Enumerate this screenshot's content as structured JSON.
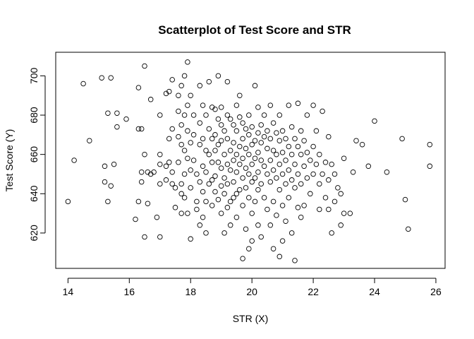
{
  "chart_data": {
    "type": "scatter",
    "title": "Scatterplot of Test Score and STR",
    "xlabel": "STR (X)",
    "ylabel": "Test Score (Y)",
    "xlim": [
      13.6,
      26.3
    ],
    "ylim": [
      602,
      712
    ],
    "xticks": [
      14,
      16,
      18,
      20,
      22,
      24,
      26
    ],
    "yticks": [
      620,
      640,
      660,
      680,
      700
    ],
    "grid": false,
    "marker": "open-circle",
    "points": [
      [
        14.0,
        636
      ],
      [
        14.2,
        657
      ],
      [
        14.5,
        696
      ],
      [
        14.7,
        667
      ],
      [
        15.1,
        699
      ],
      [
        15.2,
        654
      ],
      [
        15.2,
        646
      ],
      [
        15.3,
        681
      ],
      [
        15.3,
        636
      ],
      [
        15.4,
        699
      ],
      [
        15.4,
        644
      ],
      [
        15.5,
        655
      ],
      [
        15.6,
        681
      ],
      [
        15.6,
        674
      ],
      [
        15.9,
        678
      ],
      [
        16.2,
        627
      ],
      [
        16.3,
        694
      ],
      [
        16.3,
        673
      ],
      [
        16.3,
        636
      ],
      [
        16.4,
        673
      ],
      [
        16.4,
        651
      ],
      [
        16.4,
        646
      ],
      [
        16.5,
        705
      ],
      [
        16.5,
        660
      ],
      [
        16.5,
        618
      ],
      [
        16.6,
        651
      ],
      [
        16.6,
        635
      ],
      [
        16.7,
        688
      ],
      [
        16.7,
        650
      ],
      [
        16.8,
        651
      ],
      [
        16.9,
        628
      ],
      [
        17.0,
        680
      ],
      [
        17.0,
        660
      ],
      [
        17.0,
        655
      ],
      [
        17.0,
        645
      ],
      [
        17.0,
        618
      ],
      [
        17.2,
        654
      ],
      [
        17.2,
        647
      ],
      [
        17.2,
        691
      ],
      [
        17.3,
        692
      ],
      [
        17.3,
        668
      ],
      [
        17.3,
        656
      ],
      [
        17.4,
        698
      ],
      [
        17.4,
        673
      ],
      [
        17.4,
        651
      ],
      [
        17.4,
        645
      ],
      [
        17.5,
        643
      ],
      [
        17.5,
        633
      ],
      [
        17.6,
        690
      ],
      [
        17.6,
        682
      ],
      [
        17.6,
        669
      ],
      [
        17.6,
        656
      ],
      [
        17.7,
        695
      ],
      [
        17.7,
        675
      ],
      [
        17.7,
        665
      ],
      [
        17.7,
        645
      ],
      [
        17.7,
        640
      ],
      [
        17.7,
        630
      ],
      [
        17.8,
        700
      ],
      [
        17.8,
        680
      ],
      [
        17.8,
        662
      ],
      [
        17.8,
        650
      ],
      [
        17.8,
        638
      ],
      [
        17.9,
        707
      ],
      [
        17.9,
        685
      ],
      [
        17.9,
        672
      ],
      [
        17.9,
        658
      ],
      [
        17.9,
        630
      ],
      [
        18.0,
        690
      ],
      [
        18.0,
        666
      ],
      [
        18.0,
        652
      ],
      [
        18.0,
        643
      ],
      [
        18.0,
        617
      ],
      [
        18.1,
        680
      ],
      [
        18.1,
        670
      ],
      [
        18.1,
        657
      ],
      [
        18.2,
        650
      ],
      [
        18.2,
        636
      ],
      [
        18.2,
        632
      ],
      [
        18.3,
        695
      ],
      [
        18.3,
        676
      ],
      [
        18.3,
        665
      ],
      [
        18.3,
        646
      ],
      [
        18.3,
        624
      ],
      [
        18.4,
        685
      ],
      [
        18.4,
        668
      ],
      [
        18.4,
        654
      ],
      [
        18.4,
        641
      ],
      [
        18.4,
        628
      ],
      [
        18.5,
        680
      ],
      [
        18.5,
        662
      ],
      [
        18.5,
        651
      ],
      [
        18.5,
        636
      ],
      [
        18.5,
        620
      ],
      [
        18.6,
        697
      ],
      [
        18.6,
        673
      ],
      [
        18.6,
        660
      ],
      [
        18.6,
        645
      ],
      [
        18.7,
        684
      ],
      [
        18.7,
        668
      ],
      [
        18.7,
        656
      ],
      [
        18.7,
        647
      ],
      [
        18.7,
        634
      ],
      [
        18.8,
        683
      ],
      [
        18.8,
        670
      ],
      [
        18.8,
        662
      ],
      [
        18.8,
        649
      ],
      [
        18.8,
        641
      ],
      [
        18.9,
        700
      ],
      [
        18.9,
        678
      ],
      [
        18.9,
        665
      ],
      [
        18.9,
        656
      ],
      [
        18.9,
        637
      ],
      [
        19.0,
        684
      ],
      [
        19.0,
        675
      ],
      [
        19.0,
        667
      ],
      [
        19.0,
        653
      ],
      [
        19.0,
        644
      ],
      [
        19.0,
        630
      ],
      [
        19.1,
        672
      ],
      [
        19.1,
        660
      ],
      [
        19.1,
        648
      ],
      [
        19.1,
        640
      ],
      [
        19.1,
        620
      ],
      [
        19.2,
        697
      ],
      [
        19.2,
        680
      ],
      [
        19.2,
        668
      ],
      [
        19.2,
        655
      ],
      [
        19.2,
        645
      ],
      [
        19.2,
        633
      ],
      [
        19.3,
        678
      ],
      [
        19.3,
        662
      ],
      [
        19.3,
        652
      ],
      [
        19.3,
        636
      ],
      [
        19.3,
        624
      ],
      [
        19.4,
        675
      ],
      [
        19.4,
        666
      ],
      [
        19.4,
        657
      ],
      [
        19.4,
        646
      ],
      [
        19.4,
        638
      ],
      [
        19.5,
        685
      ],
      [
        19.5,
        672
      ],
      [
        19.5,
        660
      ],
      [
        19.5,
        651
      ],
      [
        19.5,
        640
      ],
      [
        19.5,
        628
      ],
      [
        19.6,
        690
      ],
      [
        19.6,
        679
      ],
      [
        19.6,
        664
      ],
      [
        19.6,
        655
      ],
      [
        19.6,
        642
      ],
      [
        19.7,
        676
      ],
      [
        19.7,
        668
      ],
      [
        19.7,
        658
      ],
      [
        19.7,
        648
      ],
      [
        19.7,
        634
      ],
      [
        19.7,
        607
      ],
      [
        19.8,
        673
      ],
      [
        19.8,
        663
      ],
      [
        19.8,
        653
      ],
      [
        19.8,
        643
      ],
      [
        19.8,
        622
      ],
      [
        19.9,
        680
      ],
      [
        19.9,
        670
      ],
      [
        19.9,
        660
      ],
      [
        19.9,
        650
      ],
      [
        19.9,
        638
      ],
      [
        19.9,
        612
      ],
      [
        20.0,
        674
      ],
      [
        20.0,
        665
      ],
      [
        20.0,
        655
      ],
      [
        20.0,
        646
      ],
      [
        20.0,
        630
      ],
      [
        20.0,
        616
      ],
      [
        20.1,
        695
      ],
      [
        20.1,
        667
      ],
      [
        20.1,
        658
      ],
      [
        20.1,
        648
      ],
      [
        20.1,
        636
      ],
      [
        20.2,
        684
      ],
      [
        20.2,
        671
      ],
      [
        20.2,
        661
      ],
      [
        20.2,
        651
      ],
      [
        20.2,
        642
      ],
      [
        20.2,
        624
      ],
      [
        20.3,
        675
      ],
      [
        20.3,
        666
      ],
      [
        20.3,
        657
      ],
      [
        20.3,
        645
      ],
      [
        20.3,
        618
      ],
      [
        20.4,
        680
      ],
      [
        20.4,
        669
      ],
      [
        20.4,
        654
      ],
      [
        20.4,
        638
      ],
      [
        20.5,
        672
      ],
      [
        20.5,
        663
      ],
      [
        20.5,
        650
      ],
      [
        20.5,
        632
      ],
      [
        20.6,
        685
      ],
      [
        20.6,
        668
      ],
      [
        20.6,
        657
      ],
      [
        20.6,
        646
      ],
      [
        20.6,
        624
      ],
      [
        20.7,
        676
      ],
      [
        20.7,
        662
      ],
      [
        20.7,
        652
      ],
      [
        20.7,
        636
      ],
      [
        20.7,
        612
      ],
      [
        20.8,
        671
      ],
      [
        20.8,
        660
      ],
      [
        20.8,
        648
      ],
      [
        20.8,
        629
      ],
      [
        20.9,
        680
      ],
      [
        20.9,
        667
      ],
      [
        20.9,
        655
      ],
      [
        20.9,
        642
      ],
      [
        20.9,
        608
      ],
      [
        21.0,
        672
      ],
      [
        21.0,
        661
      ],
      [
        21.0,
        650
      ],
      [
        21.0,
        634
      ],
      [
        21.0,
        616
      ],
      [
        21.1,
        668
      ],
      [
        21.1,
        657
      ],
      [
        21.1,
        645
      ],
      [
        21.1,
        626
      ],
      [
        21.2,
        685
      ],
      [
        21.2,
        664
      ],
      [
        21.2,
        652
      ],
      [
        21.2,
        638
      ],
      [
        21.3,
        674
      ],
      [
        21.3,
        660
      ],
      [
        21.3,
        647
      ],
      [
        21.3,
        620
      ],
      [
        21.4,
        668
      ],
      [
        21.4,
        655
      ],
      [
        21.4,
        643
      ],
      [
        21.4,
        606
      ],
      [
        21.5,
        686
      ],
      [
        21.5,
        664
      ],
      [
        21.5,
        650
      ],
      [
        21.5,
        633
      ],
      [
        21.6,
        672
      ],
      [
        21.6,
        660
      ],
      [
        21.6,
        645
      ],
      [
        21.6,
        628
      ],
      [
        21.7,
        667
      ],
      [
        21.7,
        654
      ],
      [
        21.7,
        634
      ],
      [
        21.8,
        680
      ],
      [
        21.8,
        661
      ],
      [
        21.8,
        648
      ],
      [
        21.9,
        657
      ],
      [
        21.9,
        640
      ],
      [
        22.0,
        685
      ],
      [
        22.0,
        664
      ],
      [
        22.0,
        650
      ],
      [
        22.1,
        672
      ],
      [
        22.1,
        655
      ],
      [
        22.2,
        660
      ],
      [
        22.2,
        645
      ],
      [
        22.2,
        632
      ],
      [
        22.3,
        682
      ],
      [
        22.3,
        650
      ],
      [
        22.4,
        656
      ],
      [
        22.4,
        638
      ],
      [
        22.5,
        669
      ],
      [
        22.5,
        647
      ],
      [
        22.5,
        632
      ],
      [
        22.6,
        655
      ],
      [
        22.6,
        620
      ],
      [
        22.7,
        650
      ],
      [
        22.7,
        636
      ],
      [
        22.8,
        643
      ],
      [
        22.9,
        640
      ],
      [
        22.9,
        624
      ],
      [
        23.0,
        658
      ],
      [
        23.0,
        630
      ],
      [
        23.2,
        630
      ],
      [
        23.3,
        651
      ],
      [
        23.4,
        667
      ],
      [
        23.6,
        665
      ],
      [
        23.8,
        654
      ],
      [
        24.0,
        677
      ],
      [
        24.4,
        651
      ],
      [
        24.9,
        668
      ],
      [
        25.0,
        637
      ],
      [
        25.1,
        622
      ],
      [
        25.8,
        665
      ],
      [
        25.8,
        654
      ]
    ]
  }
}
